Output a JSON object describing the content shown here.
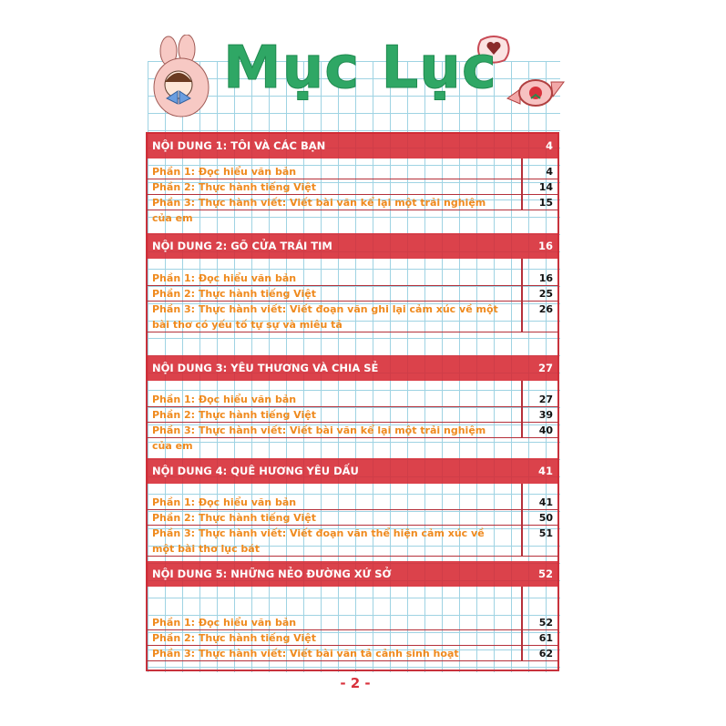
{
  "title": "Mục Lục",
  "colors": {
    "header_red": "#d62832",
    "entry_orange": "#ef8a1e",
    "title_green": "#2fa765",
    "grid_blue": "#9fd3e3"
  },
  "decorations": [
    "bunny-girl-icon",
    "heart-cookie-icon",
    "strawberry-candy-icon"
  ],
  "sections": [
    {
      "title": "NỘI DUNG 1: TÔI VÀ CÁC BẠN",
      "page": "4",
      "entries": [
        {
          "text": "Phần 1: Đọc hiểu văn bản",
          "page": "4"
        },
        {
          "text": "Phần 2: Thực hành tiếng Việt",
          "page": "14"
        },
        {
          "text": "Phần 3: Thực hành viết: Viết bài văn kể lại một trải nghiệm của em",
          "page": "15"
        }
      ]
    },
    {
      "title": "NỘI DUNG 2: GÕ CỬA TRÁI TIM",
      "page": "16",
      "entries": [
        {
          "text": "Phần 1: Đọc hiểu văn bản",
          "page": "16"
        },
        {
          "text": "Phần 2: Thực hành tiếng Việt",
          "page": "25"
        },
        {
          "text": "Phần 3: Thực hành viết: Viết đoạn văn ghi lại cảm xúc về một bài thơ có yếu tố tự sự và miêu tả",
          "page": "26"
        }
      ]
    },
    {
      "title": "NỘI DUNG 3: YÊU THƯƠNG VÀ CHIA SẺ",
      "page": "27",
      "entries": [
        {
          "text": "Phần 1: Đọc hiểu văn bản",
          "page": "27"
        },
        {
          "text": "Phần 2: Thực hành tiếng Việt",
          "page": "39"
        },
        {
          "text": "Phần 3: Thực hành viết: Viết bài văn kể lại một trải nghiệm của em",
          "page": "40"
        }
      ]
    },
    {
      "title": "NỘI DUNG 4: QUÊ HƯƠNG YÊU DẤU",
      "page": "41",
      "entries": [
        {
          "text": "Phần 1: Đọc hiểu văn bản",
          "page": "41"
        },
        {
          "text": "Phần 2: Thực hành tiếng Việt",
          "page": "50"
        },
        {
          "text": "Phần 3: Thực hành viết: Viết đoạn văn thể hiện cảm xúc về một bài thơ lục bát",
          "page": "51"
        }
      ]
    },
    {
      "title": "NỘI DUNG 5: NHỮNG NẺO ĐƯỜNG XỨ SỞ",
      "page": "52",
      "entries": [
        {
          "text": "Phần 1: Đọc hiểu văn bản",
          "page": "52"
        },
        {
          "text": "Phần 2: Thực hành tiếng Việt",
          "page": "61"
        },
        {
          "text": "Phần 3: Thực hành viết: Viết bài văn tả cảnh sinh hoạt",
          "page": "62"
        }
      ]
    }
  ],
  "page_number": "- 2 -"
}
